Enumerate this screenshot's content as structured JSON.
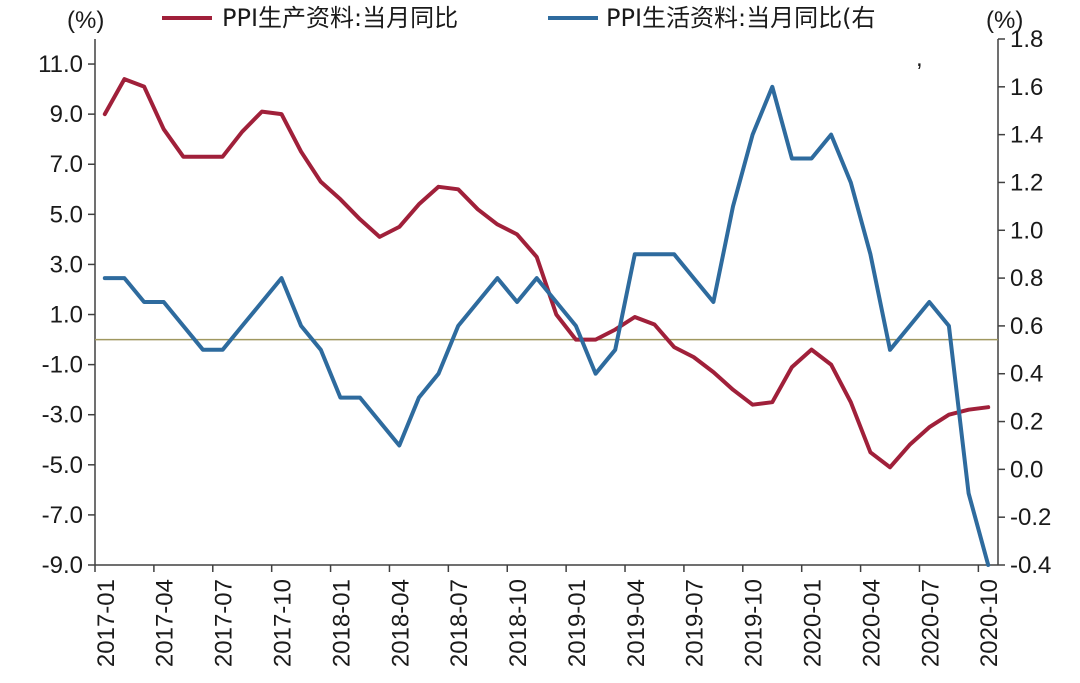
{
  "chart_data": {
    "type": "line",
    "left_axis": {
      "unit": "(%)",
      "ylim": [
        -9.0,
        12.0
      ],
      "ticks": [
        "11.0",
        "9.0",
        "7.0",
        "5.0",
        "3.0",
        "1.0",
        "-1.0",
        "-3.0",
        "-5.0",
        "-7.0",
        "-9.0"
      ],
      "tick_values": [
        11,
        9,
        7,
        5,
        3,
        1,
        -1,
        -3,
        -5,
        -7,
        -9
      ]
    },
    "right_axis": {
      "unit": "(%)",
      "ylim": [
        -0.4,
        1.8
      ],
      "ticks": [
        "1.8",
        "1.6",
        "1.4",
        "1.2",
        "1.0",
        "0.8",
        "0.6",
        "0.4",
        "0.2",
        "0.0",
        "-0.2",
        "-0.4"
      ],
      "tick_values": [
        1.8,
        1.6,
        1.4,
        1.2,
        1.0,
        0.8,
        0.6,
        0.4,
        0.2,
        0.0,
        -0.2,
        -0.4
      ]
    },
    "x_labels": [
      "2017-01",
      "2017-04",
      "2017-07",
      "2017-10",
      "2018-01",
      "2018-04",
      "2018-07",
      "2018-10",
      "2019-01",
      "2019-04",
      "2019-07",
      "2019-10",
      "2020-01",
      "2020-04",
      "2020-07",
      "2020-10"
    ],
    "x": [
      "2017-01",
      "2017-02",
      "2017-03",
      "2017-04",
      "2017-05",
      "2017-06",
      "2017-07",
      "2017-08",
      "2017-09",
      "2017-10",
      "2017-11",
      "2017-12",
      "2018-01",
      "2018-02",
      "2018-03",
      "2018-04",
      "2018-05",
      "2018-06",
      "2018-07",
      "2018-08",
      "2018-09",
      "2018-10",
      "2018-11",
      "2018-12",
      "2019-01",
      "2019-02",
      "2019-03",
      "2019-04",
      "2019-05",
      "2019-06",
      "2019-07",
      "2019-08",
      "2019-09",
      "2019-10",
      "2019-11",
      "2019-12",
      "2020-01",
      "2020-02",
      "2020-03",
      "2020-04",
      "2020-05",
      "2020-06",
      "2020-07",
      "2020-08",
      "2020-09",
      "2020-10"
    ],
    "zero_line_right": 0.55,
    "series": [
      {
        "name": "PPI生产资料:当月同比",
        "axis": "left",
        "color": "#a0203a",
        "values": [
          9.0,
          10.4,
          10.1,
          8.4,
          7.3,
          7.3,
          7.3,
          8.3,
          9.1,
          9.0,
          7.5,
          6.3,
          5.6,
          4.8,
          4.1,
          4.5,
          5.4,
          6.1,
          6.0,
          5.2,
          4.6,
          4.2,
          3.3,
          1.0,
          0.0,
          0.0,
          0.4,
          0.9,
          0.6,
          -0.3,
          -0.7,
          -1.3,
          -2.0,
          -2.6,
          -2.5,
          -1.1,
          -0.4,
          -1.0,
          -2.5,
          -4.5,
          -5.1,
          -4.2,
          -3.5,
          -3.0,
          -2.8,
          -2.7
        ]
      },
      {
        "name": "PPI生活资料:当月同比(右",
        "axis": "right",
        "color": "#2e6b9e",
        "values": [
          0.8,
          0.8,
          0.7,
          0.7,
          0.6,
          0.5,
          0.5,
          0.6,
          0.7,
          0.8,
          0.6,
          0.5,
          0.3,
          0.3,
          0.2,
          0.1,
          0.3,
          0.4,
          0.6,
          0.7,
          0.8,
          0.7,
          0.8,
          0.7,
          0.6,
          0.4,
          0.5,
          0.9,
          0.9,
          0.9,
          0.8,
          0.7,
          1.1,
          1.4,
          1.6,
          1.3,
          1.3,
          1.4,
          1.2,
          0.9,
          0.5,
          0.6,
          0.7,
          0.6,
          -0.1,
          -0.4
        ]
      }
    ],
    "legend_position": "top",
    "grid": false
  }
}
